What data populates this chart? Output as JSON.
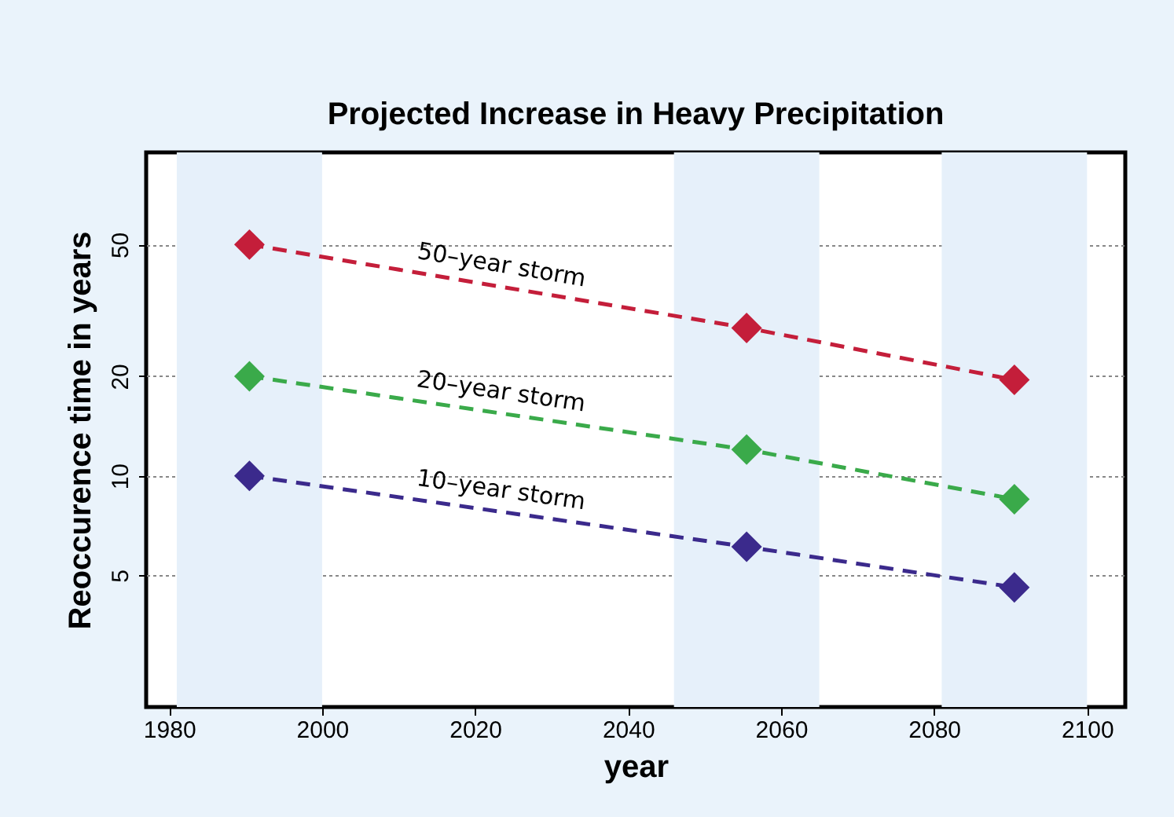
{
  "chart_data": {
    "type": "line",
    "title": "Projected Increase in Heavy Precipitation",
    "xlabel": "year",
    "ylabel": "Reoccurence time in years",
    "x": [
      1990.5,
      2055.5,
      2090.5
    ],
    "series": [
      {
        "name": "50–year storm",
        "color": "#c41e3a",
        "values": [
          50,
          28,
          19.5
        ]
      },
      {
        "name": "20–year storm",
        "color": "#3aaa4a",
        "values": [
          20,
          12,
          8.5
        ]
      },
      {
        "name": "10–year storm",
        "color": "#3b2a8c",
        "values": [
          10,
          6.1,
          4.6
        ]
      }
    ],
    "log": "y",
    "xlim": [
      1977,
      2105
    ],
    "ylim": [
      2,
      95
    ],
    "xticks": [
      1980,
      2000,
      2020,
      2040,
      2060,
      2080,
      2100
    ],
    "yticks": [
      5,
      10,
      20,
      50
    ],
    "grid": "y",
    "marker": "diamond",
    "line_style": "dashed",
    "bands": [
      {
        "axis": "x",
        "from": 1981,
        "to": 2000,
        "color": "#e6f0fa"
      },
      {
        "axis": "x",
        "from": 2046,
        "to": 2065,
        "color": "#e6f0fa"
      },
      {
        "axis": "x",
        "from": 2081,
        "to": 2100,
        "color": "#e6f0fa"
      }
    ]
  }
}
